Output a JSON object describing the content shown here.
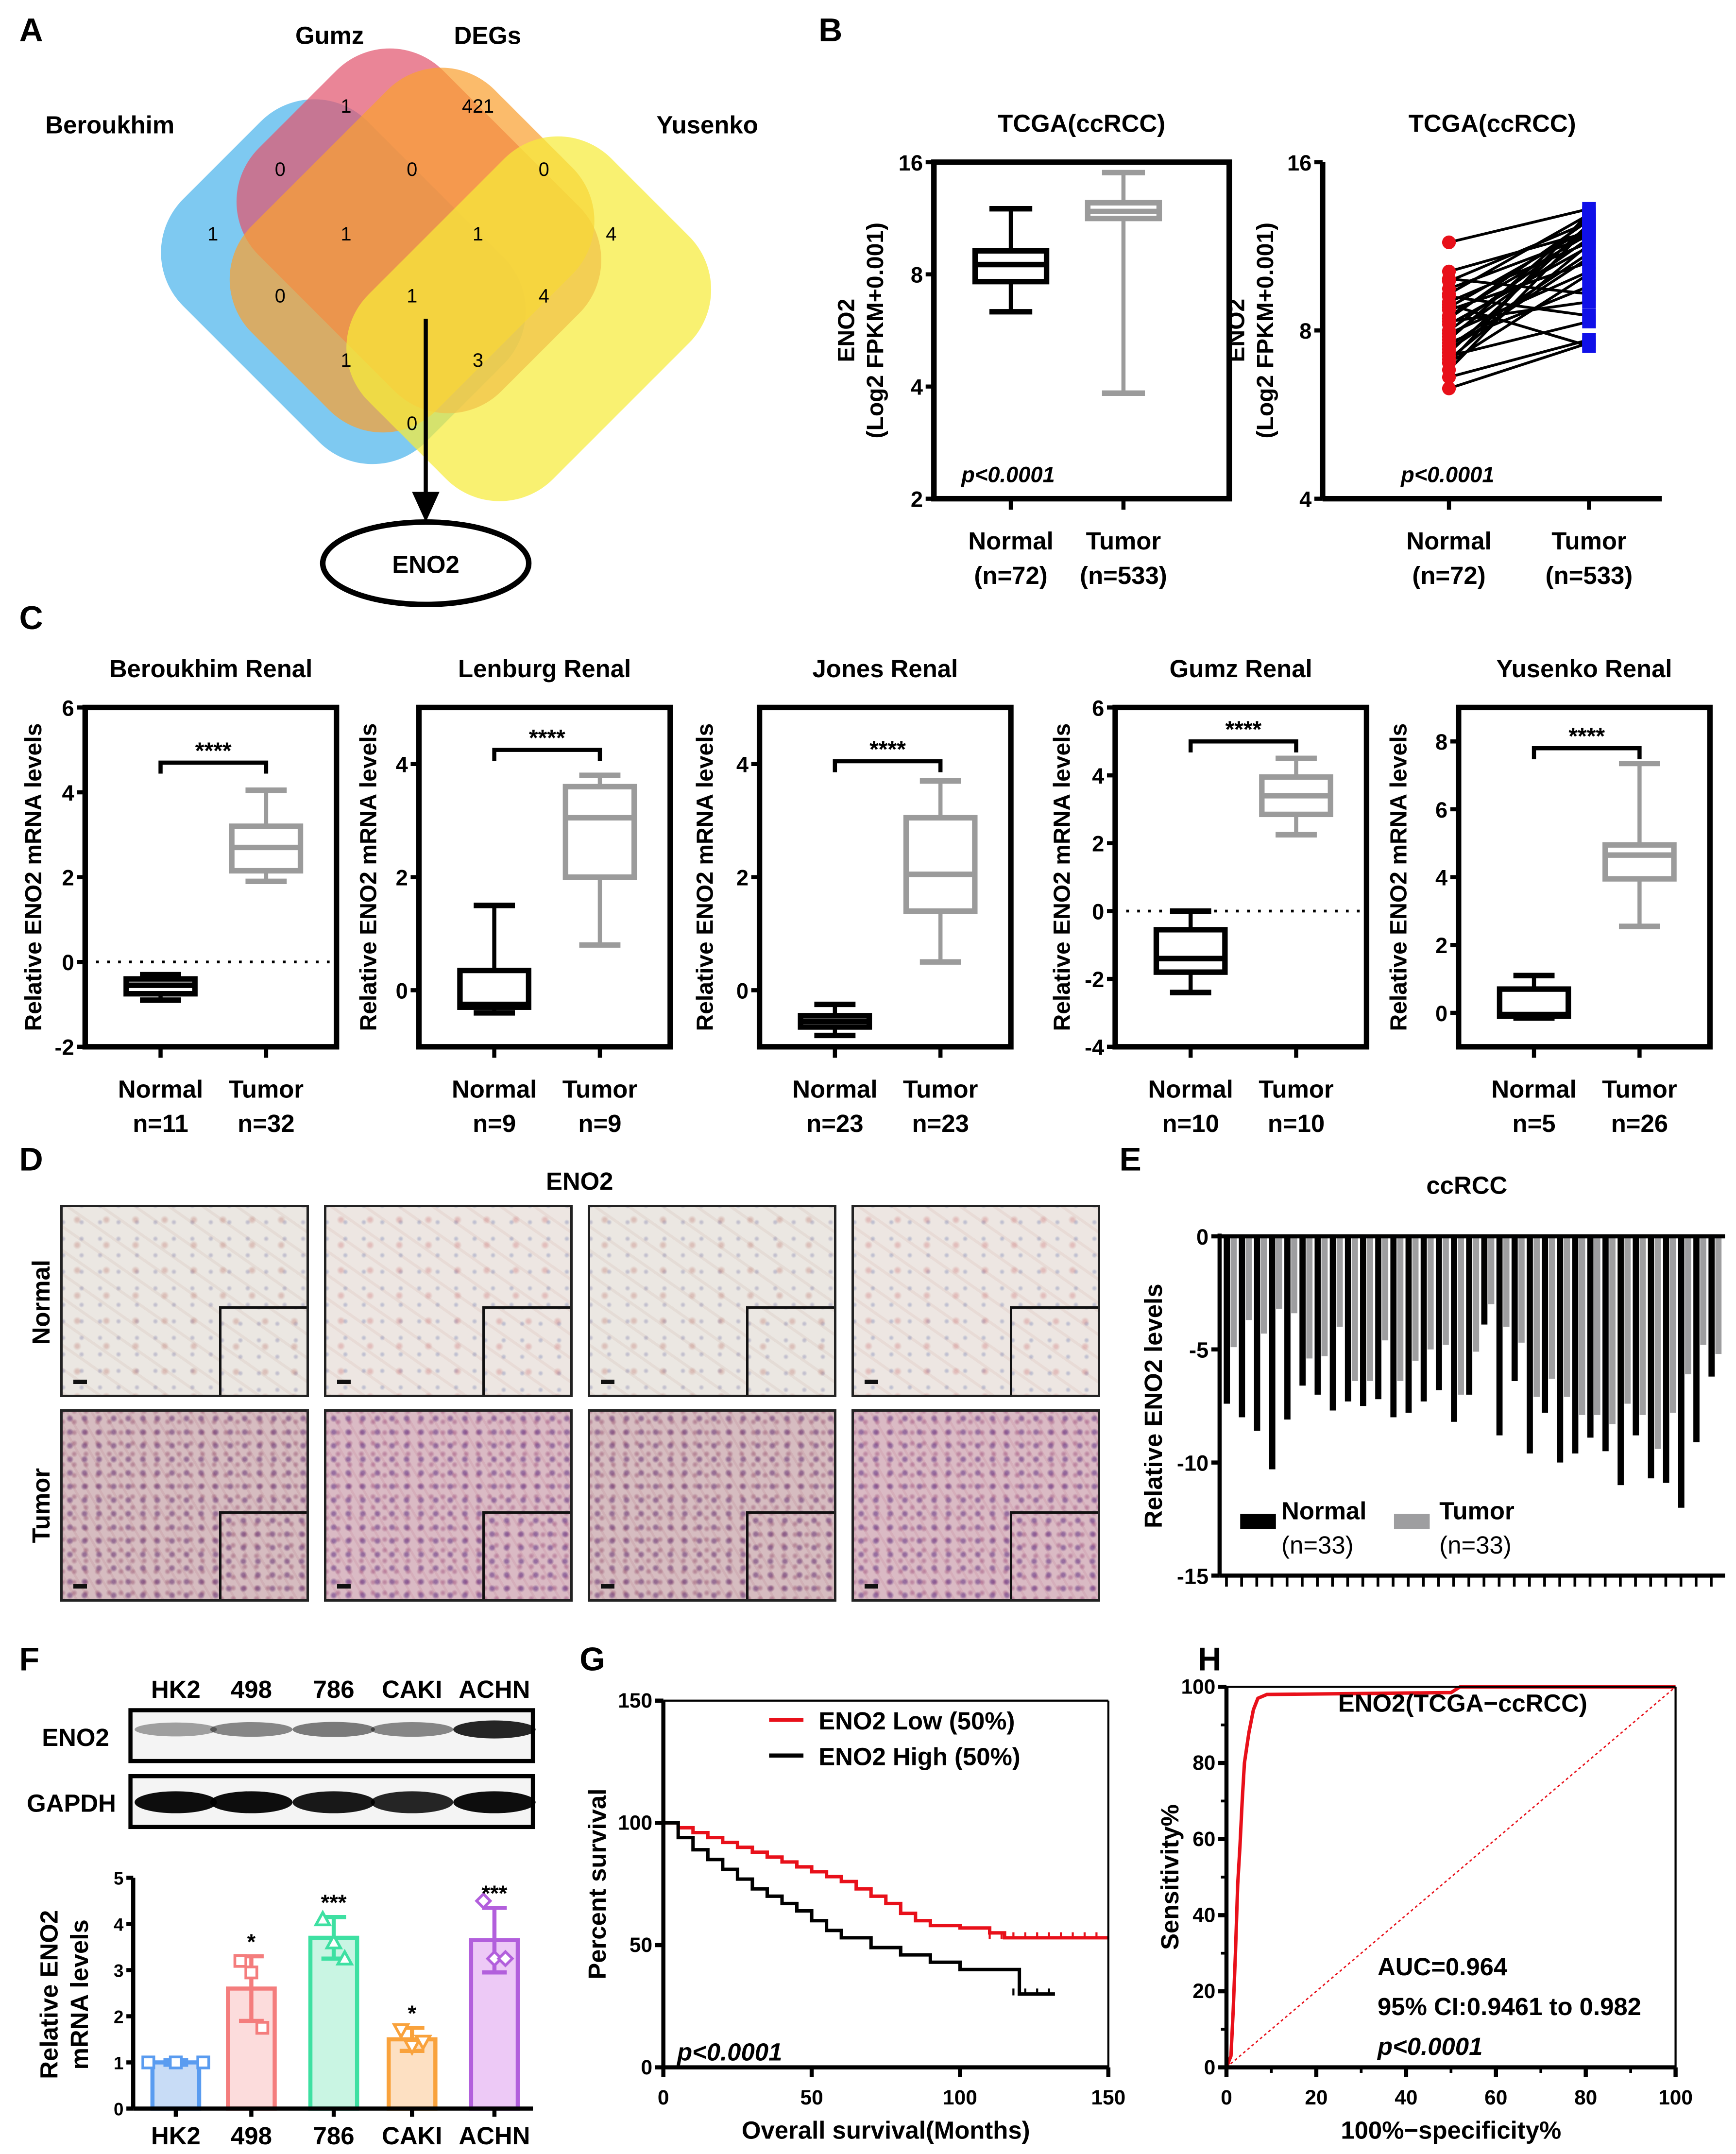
{
  "panel_labels": [
    "A",
    "B",
    "C",
    "D",
    "E",
    "F",
    "G",
    "H"
  ],
  "venn": {
    "sets": [
      "Beroukhim",
      "Gumz",
      "DEGs",
      "Yusenko"
    ],
    "colors": [
      "#4cb4ec",
      "#e2566f",
      "#f9a132",
      "#f7ec3a"
    ],
    "counts": [
      "1",
      "421",
      "0",
      "0",
      "0",
      "1",
      "1",
      "1",
      "4",
      "0",
      "1",
      "4",
      "1",
      "3",
      "0"
    ],
    "result": "ENO2"
  },
  "panel_d": {
    "title": "ENO2",
    "rows": [
      "Normal",
      "Tumor"
    ]
  },
  "blot": {
    "lanes": [
      "HK2",
      "498",
      "786",
      "CAKI",
      "ACHN"
    ],
    "rows": [
      "ENO2",
      "GAPDH"
    ]
  },
  "chart_data": [
    {
      "type": "box",
      "title": "TCGA(ccRCC)",
      "ylabel": [
        "ENO2",
        "(Log2 FPKM+0.001)"
      ],
      "yscale": "log2",
      "ylim": [
        2,
        16
      ],
      "yticks": [
        2,
        4,
        8,
        16
      ],
      "categories": [
        "Normal",
        "Tumor"
      ],
      "n_labels": [
        "(n=72)",
        "(n=533)"
      ],
      "annotation": "p<0.0001",
      "colors": [
        "#000000",
        "#9b9b9b"
      ],
      "boxes": [
        {
          "min": 6.35,
          "q1": 7.65,
          "median": 8.5,
          "q3": 9.25,
          "max": 12.0
        },
        {
          "min": 3.84,
          "q1": 11.3,
          "median": 11.8,
          "q3": 12.45,
          "max": 15.0
        }
      ]
    },
    {
      "type": "paired",
      "title": "TCGA(ccRCC)",
      "ylabel": [
        "ENO2",
        "(Log2 FPKM+0.001)"
      ],
      "yscale": "log2",
      "ylim": [
        4,
        16
      ],
      "yticks": [
        4,
        8,
        16
      ],
      "categories": [
        "Normal",
        "Tumor"
      ],
      "n_labels": [
        "(n=72)",
        "(n=533)"
      ],
      "annotation": "p<0.0001",
      "colors": [
        "#e8101a",
        "#1010e8"
      ],
      "pairs": [
        [
          11.5,
          13.2
        ],
        [
          10.2,
          12.0
        ],
        [
          9.8,
          12.5
        ],
        [
          9.5,
          11.8
        ],
        [
          9.3,
          12.9
        ],
        [
          9.0,
          11.5
        ],
        [
          8.8,
          12.2
        ],
        [
          8.7,
          10.6
        ],
        [
          8.5,
          11.9
        ],
        [
          8.4,
          12.6
        ],
        [
          8.3,
          9.0
        ],
        [
          8.2,
          11.3
        ],
        [
          8.0,
          12.1
        ],
        [
          7.9,
          10.2
        ],
        [
          7.8,
          11.7
        ],
        [
          7.7,
          12.8
        ],
        [
          7.6,
          9.6
        ],
        [
          7.5,
          11.0
        ],
        [
          7.4,
          10.8
        ],
        [
          7.3,
          12.4
        ],
        [
          7.2,
          8.3
        ],
        [
          7.1,
          11.4
        ],
        [
          7.0,
          10.1
        ],
        [
          9.9,
          9.3
        ],
        [
          9.2,
          8.5
        ],
        [
          8.9,
          7.5
        ],
        [
          7.0,
          13.0
        ],
        [
          6.8,
          12.3
        ],
        [
          6.6,
          7.7
        ],
        [
          6.3,
          7.6
        ]
      ]
    },
    {
      "type": "box",
      "title": "Beroukhim Renal",
      "ylabel": [
        "Relative ENO2 mRNA levels"
      ],
      "yscale": "linear",
      "ylim": [
        -2,
        6
      ],
      "yticks": [
        -2,
        0,
        2,
        4,
        6
      ],
      "categories": [
        "Normal",
        "Tumor"
      ],
      "n_labels": [
        "n=11",
        "n=32"
      ],
      "significance": "****",
      "sig_y": 4.7,
      "zero_line": true,
      "colors": [
        "#000000",
        "#9b9b9b"
      ],
      "boxes": [
        {
          "min": -0.9,
          "q1": -0.75,
          "median": -0.55,
          "q3": -0.4,
          "max": -0.3
        },
        {
          "min": 1.9,
          "q1": 2.15,
          "median": 2.7,
          "q3": 3.2,
          "max": 4.05
        }
      ]
    },
    {
      "type": "box",
      "title": "Lenburg Renal",
      "ylabel": [
        "Relative ENO2 mRNA levels"
      ],
      "yscale": "linear",
      "ylim": [
        -1,
        5
      ],
      "yticks": [
        0,
        2,
        4
      ],
      "categories": [
        "Normal",
        "Tumor"
      ],
      "n_labels": [
        "n=9",
        "n=9"
      ],
      "significance": "****",
      "sig_y": 4.25,
      "zero_line": false,
      "colors": [
        "#000000",
        "#9b9b9b"
      ],
      "boxes": [
        {
          "min": -0.4,
          "q1": -0.3,
          "median": -0.25,
          "q3": 0.35,
          "max": 1.5
        },
        {
          "min": 0.8,
          "q1": 2.0,
          "median": 3.05,
          "q3": 3.6,
          "max": 3.8
        }
      ]
    },
    {
      "type": "box",
      "title": "Jones Renal",
      "ylabel": [
        "Relative ENO2 mRNA levels"
      ],
      "yscale": "linear",
      "ylim": [
        -1,
        5
      ],
      "yticks": [
        0,
        2,
        4
      ],
      "categories": [
        "Normal",
        "Tumor"
      ],
      "n_labels": [
        "n=23",
        "n=23"
      ],
      "significance": "****",
      "sig_y": 4.05,
      "zero_line": false,
      "colors": [
        "#000000",
        "#9b9b9b"
      ],
      "boxes": [
        {
          "min": -0.8,
          "q1": -0.65,
          "median": -0.55,
          "q3": -0.45,
          "max": -0.25
        },
        {
          "min": 0.5,
          "q1": 1.4,
          "median": 2.05,
          "q3": 3.05,
          "max": 3.7
        }
      ]
    },
    {
      "type": "box",
      "title": "Gumz Renal",
      "ylabel": [
        "Relative ENO2 mRNA levels"
      ],
      "yscale": "linear",
      "ylim": [
        -4,
        6
      ],
      "yticks": [
        -4,
        -2,
        0,
        2,
        4,
        6
      ],
      "categories": [
        "Normal",
        "Tumor"
      ],
      "n_labels": [
        "n=10",
        "n=10"
      ],
      "significance": "****",
      "sig_y": 5.0,
      "zero_line": true,
      "colors": [
        "#000000",
        "#9b9b9b"
      ],
      "boxes": [
        {
          "min": -2.4,
          "q1": -1.8,
          "median": -1.4,
          "q3": -0.55,
          "max": 0.0
        },
        {
          "min": 2.25,
          "q1": 2.85,
          "median": 3.4,
          "q3": 3.95,
          "max": 4.5
        }
      ]
    },
    {
      "type": "box",
      "title": "Yusenko Renal",
      "ylabel": [
        "Relative ENO2 mRNA levels"
      ],
      "yscale": "linear",
      "ylim": [
        -1,
        9
      ],
      "yticks": [
        0,
        2,
        4,
        6,
        8
      ],
      "categories": [
        "Normal",
        "Tumor"
      ],
      "n_labels": [
        "n=5",
        "n=26"
      ],
      "significance": "****",
      "sig_y": 7.8,
      "zero_line": false,
      "colors": [
        "#000000",
        "#9b9b9b"
      ],
      "boxes": [
        {
          "min": -0.15,
          "q1": -0.1,
          "median": -0.05,
          "q3": 0.7,
          "max": 1.1
        },
        {
          "min": 2.55,
          "q1": 3.95,
          "median": 4.65,
          "q3": 4.95,
          "max": 7.35
        }
      ]
    },
    {
      "type": "bar",
      "title": "ccRCC",
      "ylabel": "Relative ENO2 levels",
      "ylim": [
        -15,
        0
      ],
      "yticks": [
        0,
        -5,
        -10,
        -15
      ],
      "series": [
        {
          "name": "Normal",
          "n_label": "(n=33)",
          "color": "#000000",
          "values": [
            -7.4,
            -8.0,
            -8.6,
            -10.3,
            -8.1,
            -6.6,
            -7.0,
            -7.7,
            -7.3,
            -7.5,
            -7.2,
            -8.0,
            -7.8,
            -7.3,
            -6.8,
            -8.2,
            -7.0,
            -3.9,
            -8.8,
            -6.4,
            -9.6,
            -7.8,
            -10.0,
            -9.6,
            -8.9,
            -9.5,
            -11.0,
            -8.8,
            -10.7,
            -10.9,
            -12.0,
            -9.1,
            -6.2
          ]
        },
        {
          "name": "Tumor",
          "n_label": "(n=33)",
          "color": "#9e9ea0",
          "values": [
            -4.9,
            -3.7,
            -4.3,
            -3.2,
            -3.4,
            -5.4,
            -5.3,
            -4.0,
            -6.4,
            -6.4,
            -4.6,
            -6.4,
            -5.5,
            -5.0,
            -4.8,
            -7.0,
            -5.1,
            -3.0,
            -4.0,
            -4.7,
            -7.1,
            -6.3,
            -7.1,
            -7.9,
            -7.9,
            -8.3,
            -7.4,
            -7.9,
            -9.4,
            -7.8,
            -6.1,
            -4.8,
            -5.2
          ]
        }
      ]
    },
    {
      "type": "bar",
      "ylabel": [
        "Relative ENO2",
        "mRNA  levels"
      ],
      "ylim": [
        0,
        5
      ],
      "yticks": [
        0,
        1,
        2,
        3,
        4,
        5
      ],
      "categories": [
        "HK2",
        "498",
        "786",
        "CAKI",
        "ACHN"
      ],
      "values": [
        1.0,
        2.6,
        3.7,
        1.5,
        3.65
      ],
      "sd": [
        0.05,
        0.7,
        0.45,
        0.25,
        0.7
      ],
      "points": [
        [
          1.0,
          1.0,
          1.0
        ],
        [
          3.2,
          2.95,
          1.75
        ],
        [
          4.1,
          3.6,
          3.25
        ],
        [
          1.7,
          1.35,
          1.45
        ],
        [
          4.5,
          3.25,
          3.25
        ]
      ],
      "markers": [
        "square",
        "square",
        "triangle",
        "triangle-down",
        "diamond"
      ],
      "significance": [
        "",
        "*",
        "***",
        "*",
        "***"
      ],
      "colors": [
        "#5a9cf0",
        "#f47d7d",
        "#3ee0a2",
        "#f9a23c",
        "#b25fdc"
      ],
      "fill_colors": [
        "#c8dcf6",
        "#fcdcdc",
        "#c9f5e3",
        "#fde0c2",
        "#edc9f6"
      ]
    },
    {
      "type": "line",
      "ylabel": "Percent survival",
      "xlabel": "Overall survival(Months)",
      "xlim": [
        0,
        150
      ],
      "ylim": [
        0,
        150
      ],
      "xticks": [
        0,
        50,
        100,
        150
      ],
      "yticks": [
        0,
        50,
        100,
        150
      ],
      "annotation": "p<0.0001",
      "series": [
        {
          "name": "ENO2 Low (50%)",
          "color": "#e8101a",
          "points": [
            [
              0,
              100
            ],
            [
              5,
              98
            ],
            [
              10,
              96
            ],
            [
              15,
              94
            ],
            [
              20,
              92
            ],
            [
              25,
              90
            ],
            [
              30,
              88
            ],
            [
              35,
              86
            ],
            [
              40,
              84
            ],
            [
              45,
              82
            ],
            [
              50,
              80
            ],
            [
              55,
              78
            ],
            [
              60,
              76
            ],
            [
              65,
              73
            ],
            [
              70,
              70
            ],
            [
              75,
              67
            ],
            [
              80,
              63
            ],
            [
              85,
              60
            ],
            [
              90,
              58
            ],
            [
              100,
              57
            ],
            [
              110,
              55
            ],
            [
              115,
              53
            ],
            [
              150,
              53
            ]
          ]
        },
        {
          "name": "ENO2 High (50%)",
          "color": "#000000",
          "points": [
            [
              0,
              100
            ],
            [
              5,
              94
            ],
            [
              10,
              89
            ],
            [
              15,
              85
            ],
            [
              20,
              81
            ],
            [
              25,
              77
            ],
            [
              30,
              73
            ],
            [
              35,
              70
            ],
            [
              40,
              67
            ],
            [
              45,
              64
            ],
            [
              50,
              60
            ],
            [
              55,
              56
            ],
            [
              60,
              53
            ],
            [
              70,
              49
            ],
            [
              80,
              46
            ],
            [
              90,
              43
            ],
            [
              100,
              40
            ],
            [
              118,
              40
            ],
            [
              120,
              30
            ],
            [
              132,
              30
            ]
          ]
        }
      ]
    },
    {
      "type": "line",
      "title": "ENO2(TCGA−ccRCC)",
      "ylabel": "Sensitivity%",
      "xlabel": "100%−specificity%",
      "xlim": [
        0,
        100
      ],
      "ylim": [
        0,
        100
      ],
      "xticks": [
        0,
        20,
        40,
        60,
        80,
        100
      ],
      "yticks": [
        0,
        20,
        40,
        60,
        80,
        100
      ],
      "annotations": [
        "AUC=0.964",
        "95% CI:0.9461 to 0.982",
        "p<0.0001"
      ],
      "series": [
        {
          "name": "ROC",
          "color": "#e8101a",
          "points": [
            [
              0,
              0
            ],
            [
              1,
              3
            ],
            [
              1.5,
              15
            ],
            [
              2,
              30
            ],
            [
              2.5,
              48
            ],
            [
              3,
              58
            ],
            [
              3.5,
              70
            ],
            [
              4,
              80
            ],
            [
              5,
              88
            ],
            [
              6,
              94
            ],
            [
              7,
              97
            ],
            [
              9,
              98
            ],
            [
              50,
              98.5
            ],
            [
              52,
              100
            ],
            [
              100,
              100
            ]
          ]
        },
        {
          "name": "reference",
          "color": "#e8101a",
          "dashed": true,
          "points": [
            [
              0,
              0
            ],
            [
              100,
              100
            ]
          ]
        }
      ]
    }
  ]
}
